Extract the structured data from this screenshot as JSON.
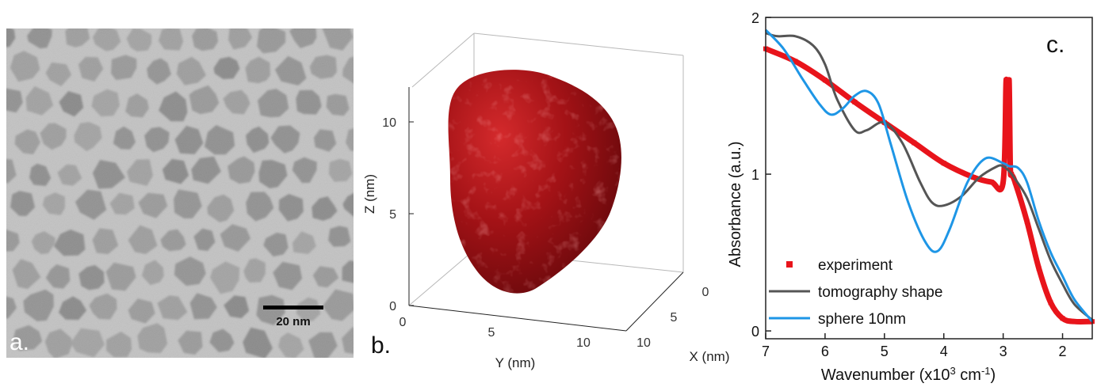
{
  "panel_a": {
    "letter": "a.",
    "scale_bar_label": "20 nm"
  },
  "panel_b": {
    "letter": "b.",
    "zlabel": "Z (nm)",
    "ylabel": "Y (nm)",
    "xlabel": "X (nm)",
    "z_ticks": [
      "0",
      "5",
      "10"
    ],
    "y_ticks": [
      "0",
      "5",
      "10"
    ],
    "x_ticks": [
      "0",
      "5",
      "10"
    ],
    "surface_color": "#8e0c10"
  },
  "chart_data": {
    "type": "line",
    "letter": "c.",
    "xlabel": "Wavenumber (x10",
    "xlabel_sup": "3",
    "xlabel_unit": " cm",
    "xlabel_sup2": "-1",
    "xlabel_end": ")",
    "ylabel": "Absorbance (a.u.)",
    "xlim": [
      7,
      1.5
    ],
    "ylim": [
      -0.05,
      2
    ],
    "x_ticks": [
      7,
      6,
      5,
      4,
      3,
      2
    ],
    "y_ticks": [
      0,
      1,
      2
    ],
    "legend_position": "bottom-left",
    "series": [
      {
        "name": "experiment",
        "color": "#e8141b",
        "style": "markers",
        "x": [
          7.0,
          6.5,
          6.0,
          5.5,
          5.0,
          4.5,
          4.0,
          3.5,
          3.2,
          3.0,
          2.95,
          2.92,
          2.9,
          2.88,
          2.86,
          2.8,
          2.6,
          2.4,
          2.2,
          2.0,
          1.8,
          1.5
        ],
        "y": [
          1.8,
          1.72,
          1.6,
          1.46,
          1.33,
          1.2,
          1.07,
          0.98,
          0.95,
          0.95,
          1.6,
          1.25,
          1.6,
          1.05,
          1.0,
          0.95,
          0.7,
          0.4,
          0.18,
          0.08,
          0.06,
          0.06
        ]
      },
      {
        "name": "tomography shape",
        "color": "#555555",
        "style": "line",
        "x": [
          7.0,
          6.8,
          6.5,
          6.2,
          6.0,
          5.8,
          5.5,
          5.3,
          5.0,
          4.7,
          4.4,
          4.2,
          4.0,
          3.7,
          3.4,
          3.1,
          3.0,
          2.9,
          2.8,
          2.6,
          2.4,
          2.2,
          2.0,
          1.8,
          1.5
        ],
        "y": [
          1.9,
          1.88,
          1.88,
          1.82,
          1.7,
          1.48,
          1.28,
          1.28,
          1.33,
          1.2,
          0.95,
          0.82,
          0.8,
          0.86,
          0.98,
          1.05,
          1.05,
          1.02,
          0.97,
          0.85,
          0.65,
          0.45,
          0.3,
          0.17,
          0.07
        ]
      },
      {
        "name": "sphere 10nm",
        "color": "#1e96e6",
        "style": "line",
        "x": [
          7.0,
          6.7,
          6.4,
          6.1,
          5.9,
          5.7,
          5.5,
          5.3,
          5.1,
          4.9,
          4.6,
          4.3,
          4.1,
          3.9,
          3.6,
          3.3,
          3.0,
          2.9,
          2.75,
          2.6,
          2.4,
          2.2,
          2.0,
          1.8,
          1.5
        ],
        "y": [
          1.92,
          1.8,
          1.62,
          1.45,
          1.38,
          1.42,
          1.5,
          1.53,
          1.45,
          1.2,
          0.82,
          0.56,
          0.51,
          0.65,
          0.95,
          1.1,
          1.07,
          1.05,
          1.04,
          0.95,
          0.7,
          0.5,
          0.35,
          0.2,
          0.06
        ]
      }
    ]
  }
}
